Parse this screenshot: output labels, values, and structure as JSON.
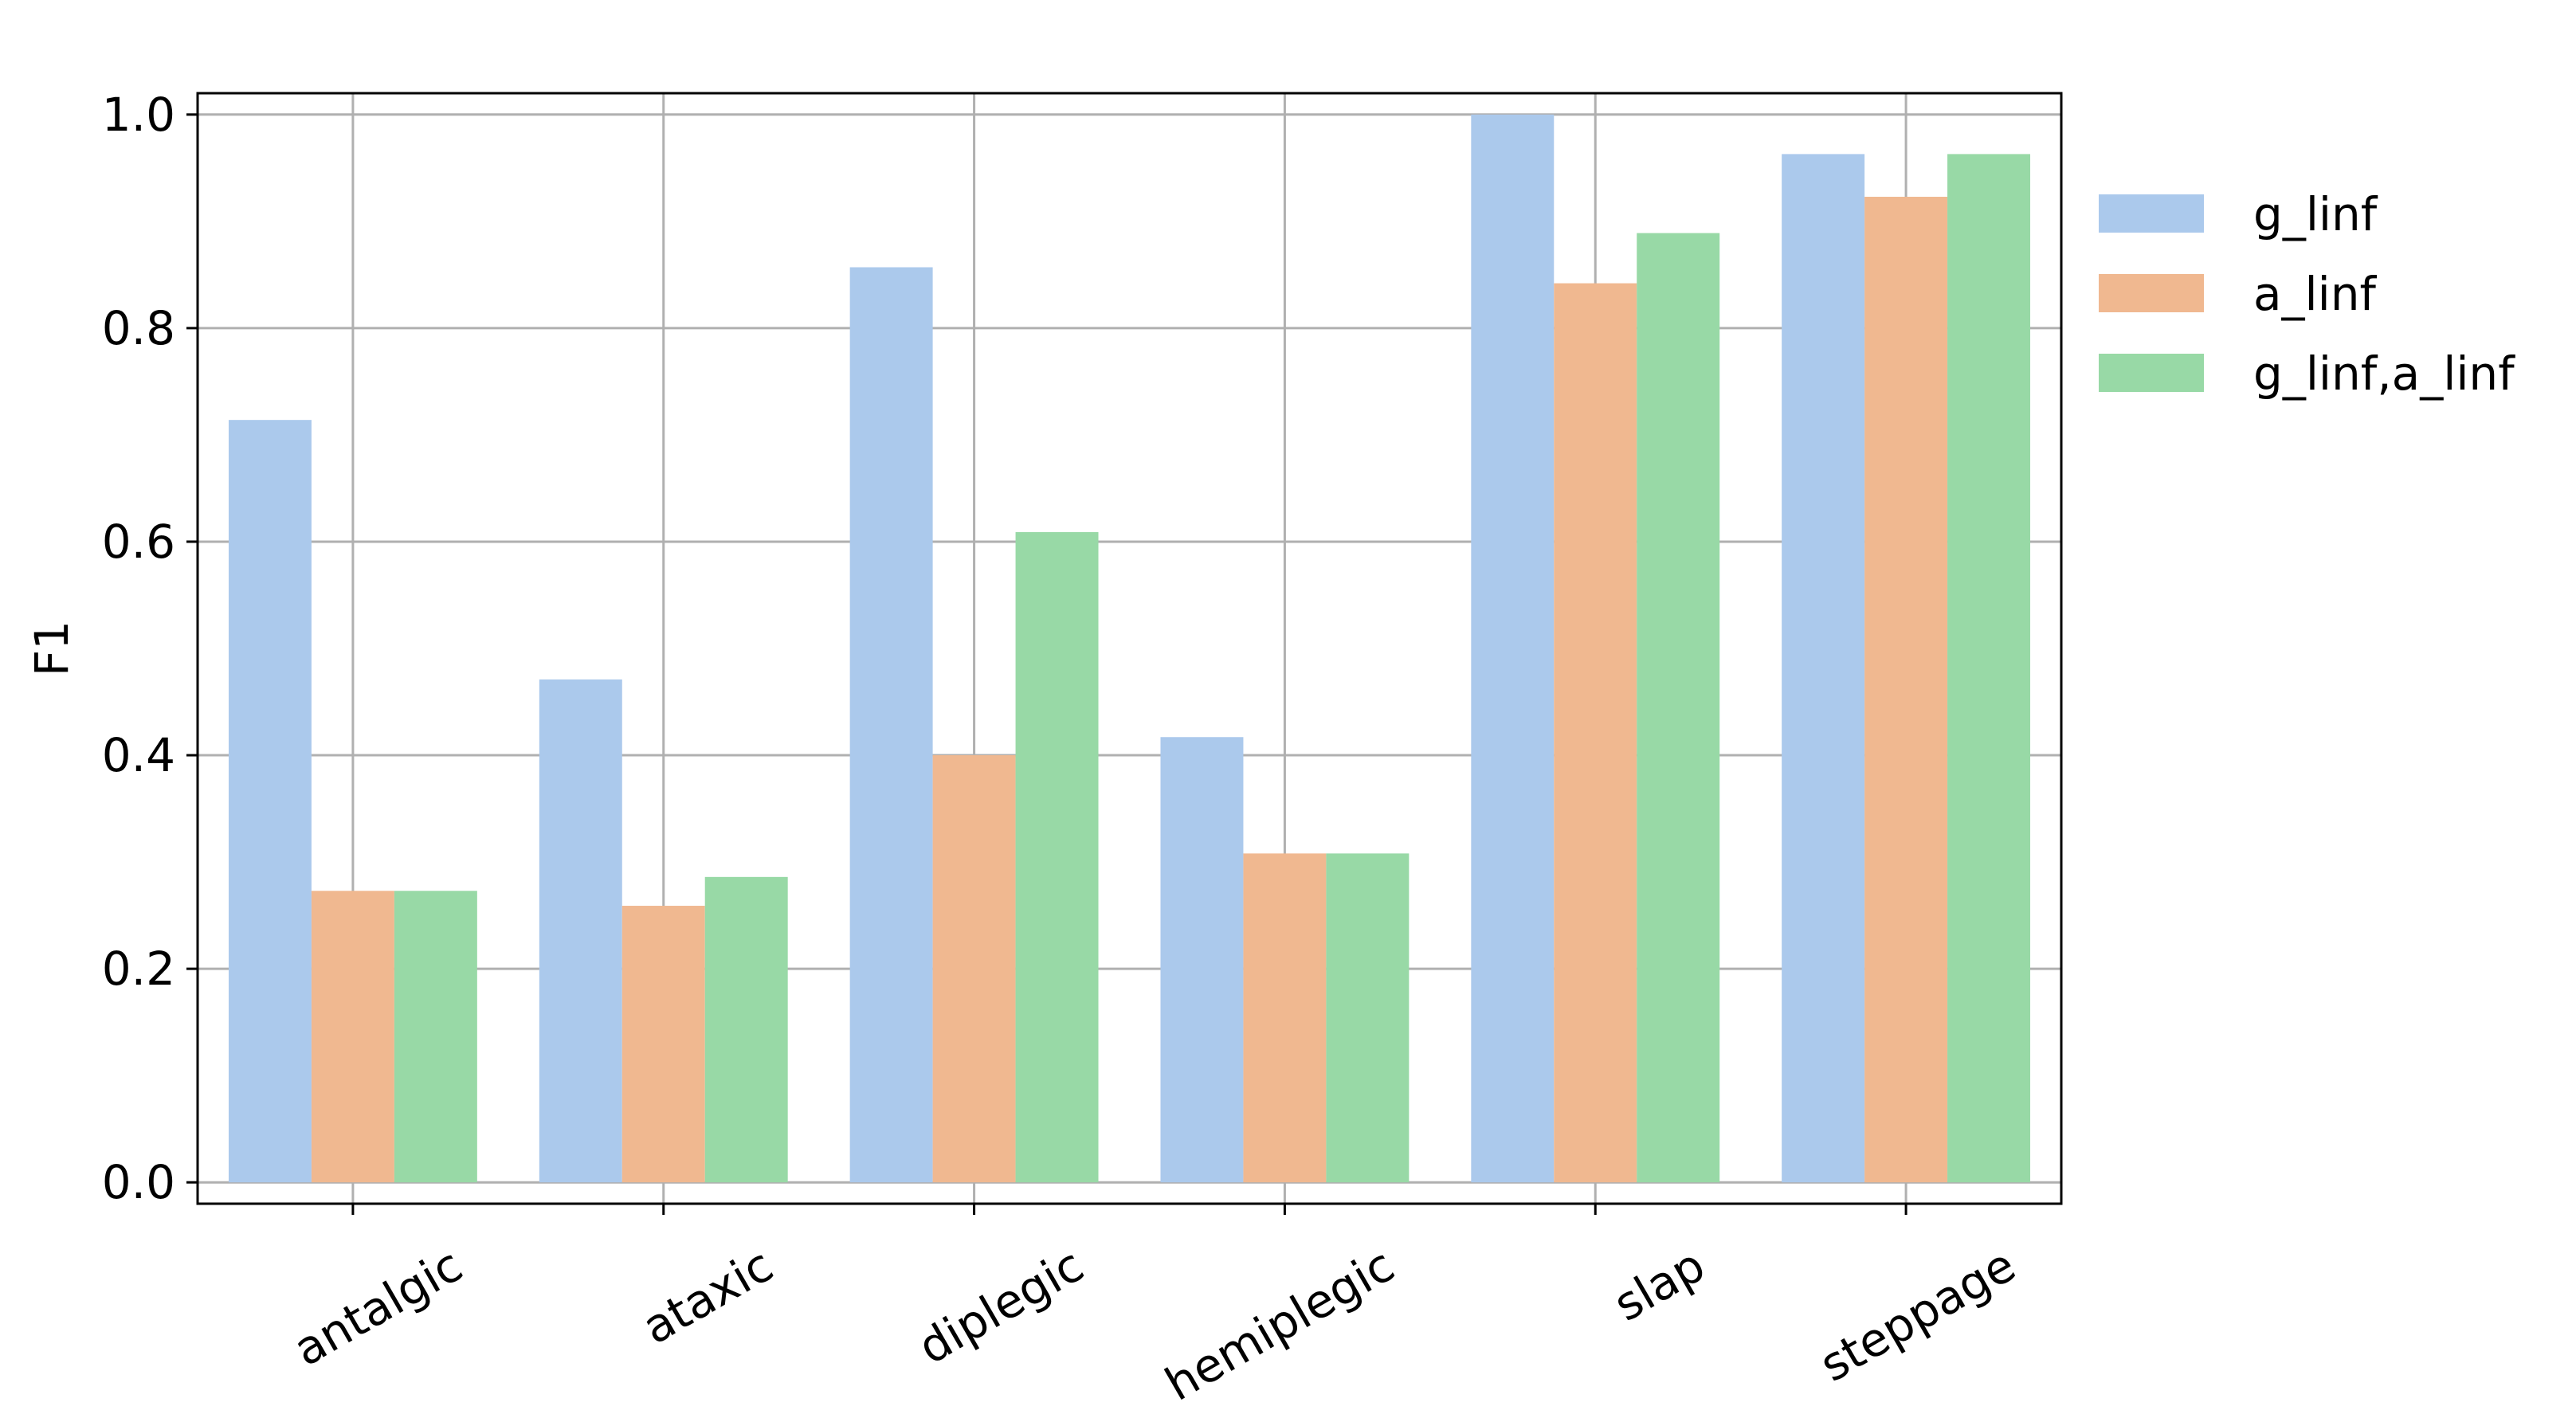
{
  "chart_data": {
    "type": "bar",
    "title": "",
    "xlabel": "",
    "ylabel": "F1",
    "ylim": [
      -0.02,
      1.02
    ],
    "yticks": [
      "0.0",
      "0.2",
      "0.4",
      "0.6",
      "0.8",
      "1.0"
    ],
    "grid": true,
    "legend_position": "outside-right-top",
    "categories": [
      "antalgic",
      "ataxic",
      "diplegic",
      "hemiplegic",
      "slap",
      "steppage"
    ],
    "series": [
      {
        "name": "g_linf",
        "color": "#abc9ec",
        "values": [
          0.714,
          0.471,
          0.857,
          0.417,
          1.0,
          0.963
        ]
      },
      {
        "name": "a_linf",
        "color": "#f0b890",
        "values": [
          0.273,
          0.259,
          0.4,
          0.308,
          0.842,
          0.923
        ]
      },
      {
        "name": "g_linf,a_linf",
        "color": "#98d9a6",
        "values": [
          0.273,
          0.286,
          0.609,
          0.308,
          0.889,
          0.963
        ]
      }
    ]
  }
}
